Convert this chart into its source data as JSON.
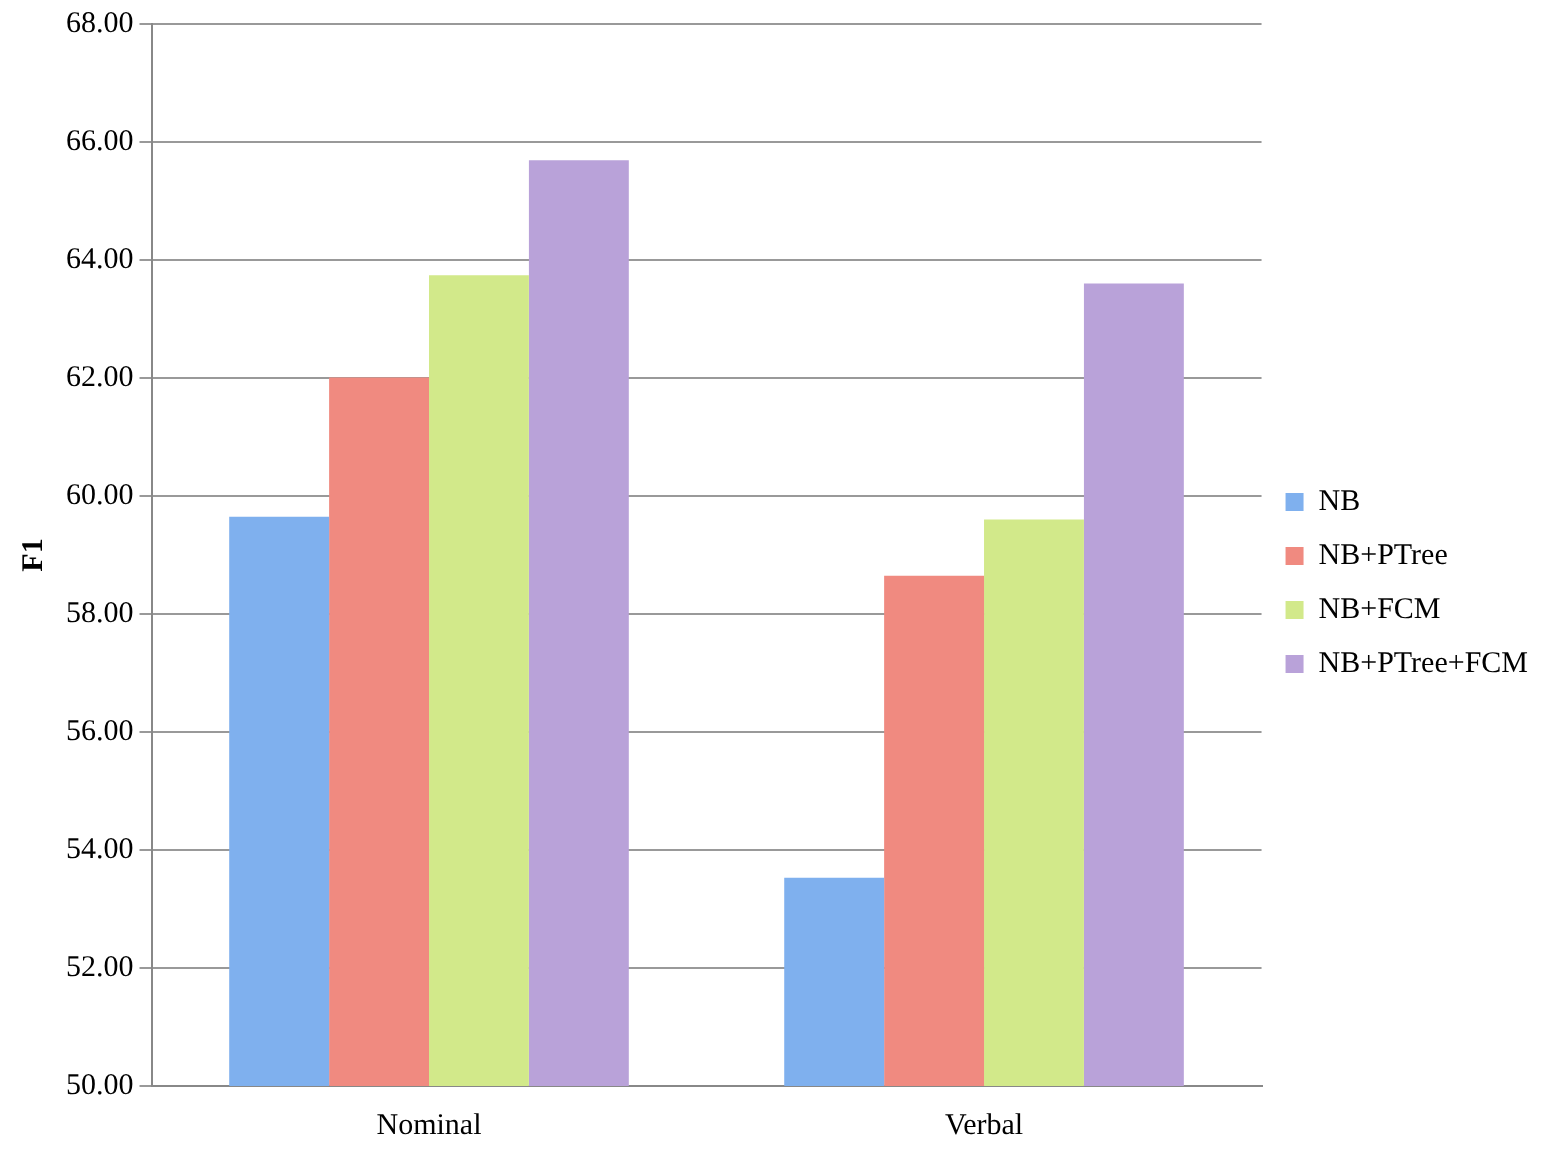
{
  "chart_data": {
    "type": "bar",
    "ylabel": "F1",
    "categories": [
      "Nominal",
      "Verbal"
    ],
    "series": [
      {
        "name": "NB",
        "color": "#7fb0ee",
        "values": [
          59.65,
          53.53
        ]
      },
      {
        "name": "NB+PTree",
        "color": "#f08a80",
        "values": [
          62.01,
          58.65
        ]
      },
      {
        "name": "NB+FCM",
        "color": "#d2e98a",
        "values": [
          63.74,
          59.6
        ]
      },
      {
        "name": "NB+PTree+FCM",
        "color": "#b9a2d9",
        "values": [
          65.69,
          63.6
        ]
      }
    ],
    "ylim": [
      50,
      68
    ],
    "yticks": [
      {
        "value": 50,
        "label": "50.00"
      },
      {
        "value": 52,
        "label": "52.00"
      },
      {
        "value": 54,
        "label": "54.00"
      },
      {
        "value": 56,
        "label": "56.00"
      },
      {
        "value": 58,
        "label": "58.00"
      },
      {
        "value": 60,
        "label": "60.00"
      },
      {
        "value": 62,
        "label": "62.00"
      },
      {
        "value": 64,
        "label": "64.00"
      },
      {
        "value": 66,
        "label": "66.00"
      },
      {
        "value": 68,
        "label": "68.00"
      }
    ],
    "grid": "y",
    "legend": "right"
  }
}
